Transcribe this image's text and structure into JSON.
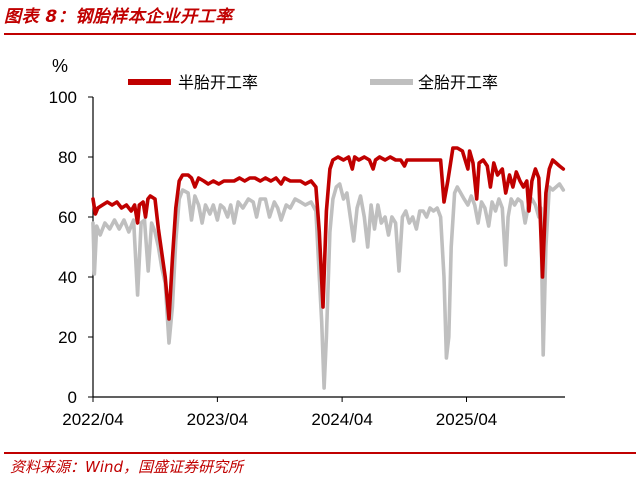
{
  "figure": {
    "title": "图表 8：钢胎样本企业开工率",
    "source": "资料来源：Wind，国盛证券研究所"
  },
  "colors": {
    "semi_steel": "#c00000",
    "all_steel": "#bfbfbf",
    "accent": "#c00000"
  },
  "chart_data": {
    "type": "line",
    "title": "",
    "xlabel": "",
    "ylabel": "%",
    "ylim": [
      0,
      100
    ],
    "yticks": [
      0,
      20,
      40,
      60,
      80,
      100
    ],
    "xlim": [
      "2022-04-01",
      "2026-01-15"
    ],
    "xticks": [
      "2022/04",
      "2023/04",
      "2024/04",
      "2025/04"
    ],
    "grid": false,
    "legend_position": "top",
    "series": [
      {
        "name": "半胎开工率",
        "color": "#c00000",
        "points": [
          [
            "2022-04-01",
            66
          ],
          [
            "2022-04-08",
            61
          ],
          [
            "2022-04-15",
            63
          ],
          [
            "2022-04-29",
            64
          ],
          [
            "2022-05-13",
            65
          ],
          [
            "2022-05-27",
            64
          ],
          [
            "2022-06-10",
            65
          ],
          [
            "2022-06-24",
            63
          ],
          [
            "2022-07-08",
            64
          ],
          [
            "2022-07-22",
            62
          ],
          [
            "2022-08-01",
            64
          ],
          [
            "2022-08-10",
            58
          ],
          [
            "2022-08-15",
            64
          ],
          [
            "2022-08-26",
            65
          ],
          [
            "2022-09-02",
            60
          ],
          [
            "2022-09-09",
            66
          ],
          [
            "2022-09-16",
            67
          ],
          [
            "2022-09-30",
            66
          ],
          [
            "2022-10-10",
            56
          ],
          [
            "2022-10-20",
            48
          ],
          [
            "2022-10-30",
            40
          ],
          [
            "2022-11-10",
            26
          ],
          [
            "2022-11-20",
            46
          ],
          [
            "2022-11-30",
            63
          ],
          [
            "2022-12-10",
            72
          ],
          [
            "2022-12-20",
            74
          ],
          [
            "2023-01-05",
            74
          ],
          [
            "2023-01-15",
            73
          ],
          [
            "2023-01-25",
            70
          ],
          [
            "2023-02-05",
            73
          ],
          [
            "2023-02-20",
            72
          ],
          [
            "2023-03-05",
            71
          ],
          [
            "2023-03-20",
            72
          ],
          [
            "2023-04-05",
            71
          ],
          [
            "2023-04-20",
            72
          ],
          [
            "2023-05-05",
            72
          ],
          [
            "2023-05-20",
            72
          ],
          [
            "2023-06-05",
            73
          ],
          [
            "2023-06-20",
            72
          ],
          [
            "2023-07-05",
            73
          ],
          [
            "2023-07-20",
            73
          ],
          [
            "2023-08-05",
            72
          ],
          [
            "2023-08-20",
            73
          ],
          [
            "2023-09-05",
            72
          ],
          [
            "2023-09-20",
            73
          ],
          [
            "2023-10-05",
            71
          ],
          [
            "2023-10-15",
            73
          ],
          [
            "2023-11-01",
            72
          ],
          [
            "2023-11-15",
            72
          ],
          [
            "2023-12-01",
            72
          ],
          [
            "2023-12-15",
            71
          ],
          [
            "2024-01-01",
            72
          ],
          [
            "2024-01-15",
            70
          ],
          [
            "2024-01-25",
            55
          ],
          [
            "2024-02-05",
            30
          ],
          [
            "2024-02-15",
            62
          ],
          [
            "2024-02-25",
            76
          ],
          [
            "2024-03-05",
            79
          ],
          [
            "2024-03-20",
            80
          ],
          [
            "2024-04-05",
            79
          ],
          [
            "2024-04-20",
            80
          ],
          [
            "2024-05-01",
            76
          ],
          [
            "2024-05-08",
            80
          ],
          [
            "2024-05-20",
            79
          ],
          [
            "2024-06-05",
            80
          ],
          [
            "2024-06-20",
            79
          ],
          [
            "2024-07-01",
            76
          ],
          [
            "2024-07-08",
            79
          ],
          [
            "2024-07-20",
            80
          ],
          [
            "2024-08-05",
            79
          ],
          [
            "2024-08-20",
            80
          ],
          [
            "2024-09-05",
            79
          ],
          [
            "2024-09-20",
            79
          ],
          [
            "2024-10-01",
            77
          ],
          [
            "2024-10-08",
            79
          ],
          [
            "2024-10-20",
            79
          ],
          [
            "2024-11-05",
            79
          ],
          [
            "2024-11-20",
            79
          ],
          [
            "2024-12-05",
            79
          ],
          [
            "2024-12-20",
            79
          ],
          [
            "2025-01-05",
            79
          ],
          [
            "2025-01-15",
            79
          ],
          [
            "2025-01-25",
            65
          ],
          [
            "2025-02-05",
            72
          ],
          [
            "2025-02-20",
            83
          ],
          [
            "2025-03-05",
            83
          ],
          [
            "2025-03-20",
            82
          ],
          [
            "2025-04-05",
            76
          ],
          [
            "2025-04-10",
            82
          ],
          [
            "2025-04-20",
            78
          ],
          [
            "2025-05-01",
            66
          ],
          [
            "2025-05-08",
            78
          ],
          [
            "2025-05-20",
            79
          ],
          [
            "2025-06-01",
            77
          ],
          [
            "2025-06-10",
            70
          ],
          [
            "2025-06-20",
            78
          ],
          [
            "2025-07-01",
            74
          ],
          [
            "2025-07-15",
            76
          ],
          [
            "2025-07-25",
            68
          ],
          [
            "2025-08-05",
            74
          ],
          [
            "2025-08-15",
            70
          ],
          [
            "2025-08-25",
            75
          ],
          [
            "2025-09-05",
            72
          ],
          [
            "2025-09-15",
            70
          ],
          [
            "2025-09-25",
            72
          ],
          [
            "2025-10-01",
            62
          ],
          [
            "2025-10-10",
            72
          ],
          [
            "2025-10-20",
            76
          ],
          [
            "2025-10-30",
            73
          ],
          [
            "2025-11-10",
            40
          ],
          [
            "2025-11-20",
            68
          ],
          [
            "2025-11-30",
            76
          ],
          [
            "2025-12-10",
            79
          ],
          [
            "2025-12-20",
            78
          ],
          [
            "2025-12-30",
            77
          ],
          [
            "2026-01-10",
            76
          ]
        ]
      },
      {
        "name": "全胎开工率",
        "color": "#bfbfbf",
        "points": [
          [
            "2022-04-01",
            58
          ],
          [
            "2022-04-05",
            41
          ],
          [
            "2022-04-12",
            57
          ],
          [
            "2022-04-22",
            54
          ],
          [
            "2022-05-06",
            58
          ],
          [
            "2022-05-20",
            56
          ],
          [
            "2022-06-03",
            59
          ],
          [
            "2022-06-17",
            56
          ],
          [
            "2022-07-01",
            59
          ],
          [
            "2022-07-15",
            55
          ],
          [
            "2022-07-29",
            59
          ],
          [
            "2022-08-10",
            34
          ],
          [
            "2022-08-20",
            58
          ],
          [
            "2022-08-30",
            59
          ],
          [
            "2022-09-10",
            42
          ],
          [
            "2022-09-20",
            58
          ],
          [
            "2022-09-30",
            55
          ],
          [
            "2022-10-10",
            50
          ],
          [
            "2022-10-20",
            43
          ],
          [
            "2022-10-30",
            38
          ],
          [
            "2022-11-10",
            18
          ],
          [
            "2022-11-20",
            30
          ],
          [
            "2022-11-30",
            52
          ],
          [
            "2022-12-10",
            66
          ],
          [
            "2022-12-20",
            69
          ],
          [
            "2023-01-05",
            68
          ],
          [
            "2023-01-15",
            59
          ],
          [
            "2023-01-25",
            67
          ],
          [
            "2023-02-05",
            64
          ],
          [
            "2023-02-15",
            58
          ],
          [
            "2023-02-25",
            64
          ],
          [
            "2023-03-10",
            61
          ],
          [
            "2023-03-20",
            64
          ],
          [
            "2023-04-01",
            59
          ],
          [
            "2023-04-10",
            64
          ],
          [
            "2023-04-20",
            63
          ],
          [
            "2023-05-01",
            60
          ],
          [
            "2023-05-10",
            64
          ],
          [
            "2023-05-20",
            58
          ],
          [
            "2023-06-01",
            65
          ],
          [
            "2023-06-15",
            63
          ],
          [
            "2023-07-01",
            66
          ],
          [
            "2023-07-15",
            65
          ],
          [
            "2023-07-25",
            60
          ],
          [
            "2023-08-05",
            66
          ],
          [
            "2023-08-20",
            66
          ],
          [
            "2023-09-01",
            60
          ],
          [
            "2023-09-15",
            65
          ],
          [
            "2023-09-25",
            63
          ],
          [
            "2023-10-05",
            59
          ],
          [
            "2023-10-20",
            64
          ],
          [
            "2023-11-01",
            63
          ],
          [
            "2023-11-15",
            66
          ],
          [
            "2023-12-01",
            65
          ],
          [
            "2023-12-15",
            64
          ],
          [
            "2024-01-01",
            65
          ],
          [
            "2024-01-15",
            62
          ],
          [
            "2024-01-25",
            40
          ],
          [
            "2024-02-01",
            25
          ],
          [
            "2024-02-08",
            3
          ],
          [
            "2024-02-15",
            20
          ],
          [
            "2024-02-25",
            55
          ],
          [
            "2024-03-05",
            66
          ],
          [
            "2024-03-15",
            70
          ],
          [
            "2024-03-25",
            71
          ],
          [
            "2024-04-05",
            66
          ],
          [
            "2024-04-15",
            68
          ],
          [
            "2024-04-25",
            60
          ],
          [
            "2024-05-05",
            52
          ],
          [
            "2024-05-15",
            63
          ],
          [
            "2024-05-25",
            67
          ],
          [
            "2024-06-05",
            60
          ],
          [
            "2024-06-15",
            50
          ],
          [
            "2024-06-25",
            64
          ],
          [
            "2024-07-05",
            56
          ],
          [
            "2024-07-15",
            64
          ],
          [
            "2024-07-25",
            58
          ],
          [
            "2024-08-05",
            60
          ],
          [
            "2024-08-15",
            54
          ],
          [
            "2024-08-25",
            60
          ],
          [
            "2024-09-05",
            58
          ],
          [
            "2024-09-15",
            42
          ],
          [
            "2024-09-25",
            60
          ],
          [
            "2024-10-05",
            62
          ],
          [
            "2024-10-15",
            58
          ],
          [
            "2024-10-25",
            60
          ],
          [
            "2024-11-05",
            56
          ],
          [
            "2024-11-15",
            62
          ],
          [
            "2024-11-25",
            62
          ],
          [
            "2024-12-05",
            60
          ],
          [
            "2024-12-15",
            63
          ],
          [
            "2024-12-25",
            62
          ],
          [
            "2025-01-05",
            63
          ],
          [
            "2025-01-15",
            60
          ],
          [
            "2025-01-25",
            40
          ],
          [
            "2025-02-01",
            13
          ],
          [
            "2025-02-08",
            20
          ],
          [
            "2025-02-15",
            50
          ],
          [
            "2025-02-25",
            68
          ],
          [
            "2025-03-05",
            70
          ],
          [
            "2025-03-15",
            68
          ],
          [
            "2025-03-25",
            66
          ],
          [
            "2025-04-05",
            64
          ],
          [
            "2025-04-15",
            67
          ],
          [
            "2025-04-25",
            64
          ],
          [
            "2025-05-05",
            58
          ],
          [
            "2025-05-15",
            65
          ],
          [
            "2025-05-25",
            63
          ],
          [
            "2025-06-05",
            57
          ],
          [
            "2025-06-15",
            65
          ],
          [
            "2025-06-25",
            62
          ],
          [
            "2025-07-05",
            66
          ],
          [
            "2025-07-15",
            63
          ],
          [
            "2025-07-25",
            44
          ],
          [
            "2025-08-01",
            60
          ],
          [
            "2025-08-10",
            66
          ],
          [
            "2025-08-20",
            64
          ],
          [
            "2025-08-30",
            66
          ],
          [
            "2025-09-10",
            65
          ],
          [
            "2025-09-20",
            58
          ],
          [
            "2025-09-30",
            64
          ],
          [
            "2025-10-10",
            66
          ],
          [
            "2025-10-20",
            64
          ],
          [
            "2025-10-30",
            60
          ],
          [
            "2025-11-05",
            63
          ],
          [
            "2025-11-12",
            14
          ],
          [
            "2025-11-20",
            50
          ],
          [
            "2025-11-30",
            70
          ],
          [
            "2025-12-10",
            69
          ],
          [
            "2025-12-20",
            70
          ],
          [
            "2025-12-30",
            71
          ],
          [
            "2026-01-10",
            69
          ]
        ]
      }
    ]
  }
}
